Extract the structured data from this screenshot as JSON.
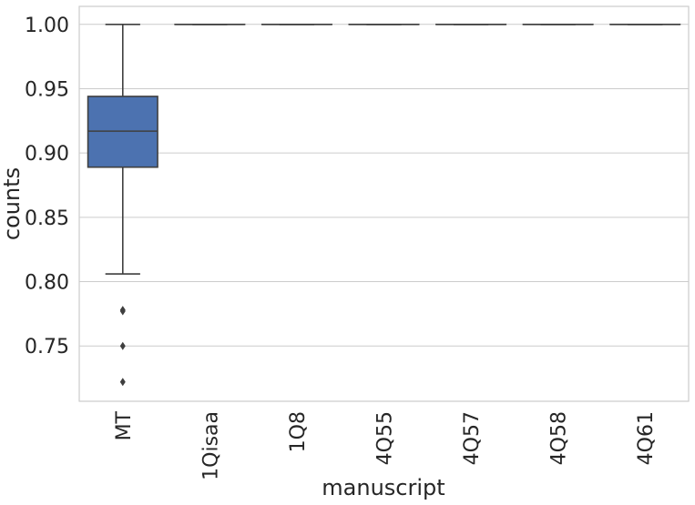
{
  "chart_data": {
    "type": "box",
    "xlabel": "manuscript",
    "ylabel": "counts",
    "ylim": [
      0.707,
      1.014
    ],
    "yticks": [
      0.75,
      0.8,
      0.85,
      0.9,
      0.95,
      1.0
    ],
    "ytick_labels": [
      "0.75",
      "0.80",
      "0.85",
      "0.90",
      "0.95",
      "1.00"
    ],
    "grid": "horizontal",
    "categories": [
      "MT",
      "1Qisaa",
      "1Q8",
      "4Q55",
      "4Q57",
      "4Q58",
      "4Q61"
    ],
    "boxes": [
      {
        "category": "MT",
        "whisker_low": 0.806,
        "q1": 0.889,
        "median": 0.917,
        "q3": 0.944,
        "whisker_high": 1.0,
        "outliers": [
          0.778,
          0.777,
          0.75,
          0.722
        ]
      },
      {
        "category": "1Qisaa",
        "whisker_low": 1.0,
        "q1": 1.0,
        "median": 1.0,
        "q3": 1.0,
        "whisker_high": 1.0,
        "outliers": []
      },
      {
        "category": "1Q8",
        "whisker_low": 1.0,
        "q1": 1.0,
        "median": 1.0,
        "q3": 1.0,
        "whisker_high": 1.0,
        "outliers": []
      },
      {
        "category": "4Q55",
        "whisker_low": 1.0,
        "q1": 1.0,
        "median": 1.0,
        "q3": 1.0,
        "whisker_high": 1.0,
        "outliers": []
      },
      {
        "category": "4Q57",
        "whisker_low": 1.0,
        "q1": 1.0,
        "median": 1.0,
        "q3": 1.0,
        "whisker_high": 1.0,
        "outliers": []
      },
      {
        "category": "4Q58",
        "whisker_low": 1.0,
        "q1": 1.0,
        "median": 1.0,
        "q3": 1.0,
        "whisker_high": 1.0,
        "outliers": []
      },
      {
        "category": "4Q61",
        "whisker_low": 1.0,
        "q1": 1.0,
        "median": 1.0,
        "q3": 1.0,
        "whisker_high": 1.0,
        "outliers": []
      }
    ],
    "colors": {
      "box_fill": "#4c72b0",
      "line": "#3f3f3f",
      "grid": "#cccccc",
      "frame": "#cccccc",
      "text": "#262626"
    }
  }
}
